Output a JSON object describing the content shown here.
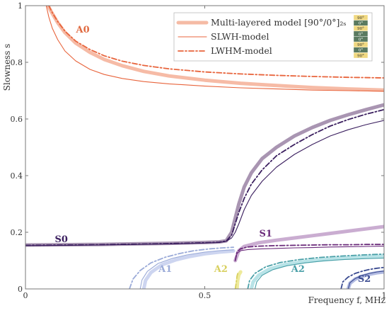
{
  "chart_data": {
    "type": "line",
    "title": "",
    "xlabel": "Frequency f, MHz",
    "ylabel": "Slowness s",
    "xlim": [
      0,
      1
    ],
    "ylim": [
      0,
      1
    ],
    "x_ticks": [
      "0",
      "0.5",
      "1"
    ],
    "y_ticks": [
      "0",
      "0.2",
      "0.4",
      "0.6",
      "0.8",
      "1"
    ],
    "grid": false,
    "legend_position": "top-right",
    "legend": [
      {
        "label": "Multi-layered model [90°/0°]₂ₛ",
        "style": "thick",
        "color": "#f5b49c"
      },
      {
        "label": "SLWH-model",
        "style": "thin",
        "color": "#e8643c"
      },
      {
        "label": "LWHM-model",
        "style": "dashdot",
        "color": "#e8643c"
      }
    ],
    "legend_layup": [
      "90°",
      "0°",
      "90°",
      "0°",
      "0°",
      "90°",
      "0°",
      "90°"
    ],
    "layup_colors": {
      "ninety": "#f0d880",
      "zero": "#5a7a60"
    },
    "mode_labels": [
      {
        "text": "A0",
        "x": 0.16,
        "y": 0.905,
        "color": "#e06a40"
      },
      {
        "text": "S0",
        "x": 0.1,
        "y": 0.165,
        "color": "#3b1f5f"
      },
      {
        "text": "S1",
        "x": 0.67,
        "y": 0.185,
        "color": "#6a2a7a"
      },
      {
        "text": "A1",
        "x": 0.39,
        "y": 0.06,
        "color": "#9aaad8"
      },
      {
        "text": "A2",
        "x": 0.545,
        "y": 0.06,
        "color": "#d8d060"
      },
      {
        "text": "A2",
        "x": 0.76,
        "y": 0.06,
        "color": "#4aa0a8"
      },
      {
        "text": "S2",
        "x": 0.945,
        "y": 0.025,
        "color": "#3a4a90"
      }
    ],
    "series": [
      {
        "mode": "A0",
        "model": "Multi-layered",
        "style": "thick",
        "color": "#f5b49c",
        "x": [
          0.063,
          0.075,
          0.09,
          0.11,
          0.14,
          0.18,
          0.22,
          0.27,
          0.33,
          0.4,
          0.5,
          0.6,
          0.7,
          0.8,
          0.9,
          1.0
        ],
        "y": [
          1.0,
          0.972,
          0.94,
          0.905,
          0.868,
          0.835,
          0.81,
          0.788,
          0.768,
          0.752,
          0.737,
          0.726,
          0.718,
          0.711,
          0.706,
          0.702
        ]
      },
      {
        "mode": "A0",
        "model": "SLWH",
        "style": "thin",
        "color": "#e8643c",
        "x": [
          0.058,
          0.065,
          0.075,
          0.09,
          0.11,
          0.14,
          0.18,
          0.22,
          0.27,
          0.33,
          0.4,
          0.5,
          0.6,
          0.7,
          0.8,
          0.9,
          1.0
        ],
        "y": [
          1.0,
          0.96,
          0.92,
          0.88,
          0.84,
          0.805,
          0.775,
          0.757,
          0.743,
          0.732,
          0.724,
          0.716,
          0.71,
          0.706,
          0.702,
          0.7,
          0.698
        ]
      },
      {
        "mode": "A0",
        "model": "LWHM",
        "style": "dashdot",
        "color": "#e8643c",
        "x": [
          0.065,
          0.075,
          0.09,
          0.11,
          0.14,
          0.18,
          0.22,
          0.27,
          0.33,
          0.4,
          0.5,
          0.6,
          0.7,
          0.8,
          0.9,
          1.0
        ],
        "y": [
          1.0,
          0.975,
          0.944,
          0.91,
          0.875,
          0.845,
          0.823,
          0.804,
          0.789,
          0.777,
          0.766,
          0.759,
          0.754,
          0.75,
          0.747,
          0.745
        ]
      },
      {
        "mode": "S0",
        "model": "Multi-layered",
        "style": "thick",
        "color": "#a08aaa",
        "x": [
          0.0,
          0.1,
          0.2,
          0.3,
          0.4,
          0.5,
          0.54,
          0.56,
          0.575,
          0.585,
          0.595,
          0.61,
          0.63,
          0.66,
          0.7,
          0.75,
          0.8,
          0.85,
          0.9,
          0.95,
          1.0
        ],
        "y": [
          0.155,
          0.156,
          0.157,
          0.159,
          0.161,
          0.164,
          0.166,
          0.17,
          0.2,
          0.25,
          0.3,
          0.36,
          0.41,
          0.46,
          0.5,
          0.54,
          0.57,
          0.595,
          0.615,
          0.633,
          0.65
        ]
      },
      {
        "mode": "S0",
        "model": "SLWH",
        "style": "thin",
        "color": "#3b1f5f",
        "x": [
          0.0,
          0.1,
          0.2,
          0.3,
          0.4,
          0.5,
          0.54,
          0.56,
          0.575,
          0.585,
          0.595,
          0.61,
          0.63,
          0.66,
          0.7,
          0.75,
          0.8,
          0.85,
          0.9,
          0.95,
          1.0
        ],
        "y": [
          0.153,
          0.154,
          0.155,
          0.157,
          0.159,
          0.162,
          0.164,
          0.168,
          0.18,
          0.2,
          0.23,
          0.28,
          0.33,
          0.38,
          0.43,
          0.475,
          0.51,
          0.54,
          0.562,
          0.58,
          0.595
        ]
      },
      {
        "mode": "S0",
        "model": "LWHM",
        "style": "dashdot",
        "color": "#3b1f5f",
        "x": [
          0.0,
          0.1,
          0.2,
          0.3,
          0.4,
          0.5,
          0.54,
          0.56,
          0.575,
          0.585,
          0.595,
          0.61,
          0.63,
          0.66,
          0.7,
          0.75,
          0.8,
          0.85,
          0.9,
          0.95,
          1.0
        ],
        "y": [
          0.154,
          0.155,
          0.156,
          0.158,
          0.16,
          0.163,
          0.165,
          0.169,
          0.19,
          0.23,
          0.27,
          0.32,
          0.37,
          0.42,
          0.47,
          0.51,
          0.545,
          0.575,
          0.598,
          0.617,
          0.633
        ]
      },
      {
        "mode": "S1",
        "model": "Multi-layered",
        "style": "thick",
        "color": "#c4a4cc",
        "x": [
          0.585,
          0.595,
          0.61,
          0.65,
          0.7,
          0.75,
          0.8,
          0.85,
          0.9,
          0.95,
          1.0
        ],
        "y": [
          0.1,
          0.135,
          0.15,
          0.163,
          0.172,
          0.18,
          0.188,
          0.196,
          0.204,
          0.212,
          0.22
        ]
      },
      {
        "mode": "S1",
        "model": "SLWH",
        "style": "thin",
        "color": "#6a2a7a",
        "x": [
          0.585,
          0.59,
          0.6,
          0.62,
          0.65,
          0.7,
          0.75,
          0.8,
          0.85,
          0.9,
          0.95,
          1.0
        ],
        "y": [
          0.1,
          0.125,
          0.135,
          0.139,
          0.141,
          0.143,
          0.145,
          0.146,
          0.148,
          0.149,
          0.15,
          0.151
        ]
      },
      {
        "mode": "S1",
        "model": "LWHM",
        "style": "dashdot",
        "color": "#6a2a7a",
        "x": [
          0.585,
          0.59,
          0.6,
          0.62,
          0.65,
          0.7,
          0.75,
          0.8,
          0.85,
          0.9,
          0.95,
          1.0
        ],
        "y": [
          0.1,
          0.13,
          0.142,
          0.148,
          0.151,
          0.153,
          0.154,
          0.155,
          0.156,
          0.156,
          0.157,
          0.157
        ]
      },
      {
        "mode": "A1",
        "model": "Multi-layered",
        "style": "thick",
        "color": "#c8d0ee",
        "x": [
          0.33,
          0.335,
          0.35,
          0.38,
          0.42,
          0.46,
          0.5,
          0.54,
          0.58
        ],
        "y": [
          0.0,
          0.03,
          0.058,
          0.085,
          0.103,
          0.115,
          0.124,
          0.13,
          0.134
        ]
      },
      {
        "mode": "A1",
        "model": "SLWH",
        "style": "thin",
        "color": "#9aaad8",
        "x": [
          0.32,
          0.325,
          0.34,
          0.37,
          0.41,
          0.45,
          0.5,
          0.54,
          0.58
        ],
        "y": [
          0.0,
          0.032,
          0.062,
          0.09,
          0.108,
          0.12,
          0.13,
          0.135,
          0.138
        ]
      },
      {
        "mode": "A1",
        "model": "LWHM",
        "style": "dashdot",
        "color": "#9aaad8",
        "x": [
          0.29,
          0.3,
          0.32,
          0.35,
          0.39,
          0.43,
          0.47,
          0.51,
          0.55,
          0.58
        ],
        "y": [
          0.0,
          0.035,
          0.065,
          0.092,
          0.112,
          0.125,
          0.135,
          0.141,
          0.145,
          0.147
        ]
      },
      {
        "mode": "A2",
        "model": "Multi-layered",
        "style": "thick",
        "color": "#ece890",
        "x": [
          0.59,
          0.592,
          0.595,
          0.6
        ],
        "y": [
          0.0,
          0.03,
          0.05,
          0.06
        ]
      },
      {
        "mode": "A2",
        "model": "LWHM",
        "style": "dashdot",
        "color": "#d8d060",
        "x": [
          0.585,
          0.588,
          0.59,
          0.593
        ],
        "y": [
          0.0,
          0.025,
          0.045,
          0.06
        ]
      },
      {
        "mode": "A2",
        "model": "Multi-layered",
        "style": "thick",
        "color": "#b0e0e4",
        "x": [
          0.63,
          0.635,
          0.65,
          0.68,
          0.72,
          0.77,
          0.82,
          0.88,
          0.94,
          1.0
        ],
        "y": [
          0.0,
          0.025,
          0.048,
          0.07,
          0.085,
          0.095,
          0.102,
          0.108,
          0.112,
          0.115
        ]
      },
      {
        "mode": "A2",
        "model": "SLWH",
        "style": "thin",
        "color": "#4aa0a8",
        "x": [
          0.64,
          0.645,
          0.66,
          0.69,
          0.73,
          0.78,
          0.83,
          0.89,
          0.95,
          1.0
        ],
        "y": [
          0.0,
          0.025,
          0.048,
          0.068,
          0.082,
          0.092,
          0.099,
          0.104,
          0.107,
          0.109
        ]
      },
      {
        "mode": "A2",
        "model": "LWHM",
        "style": "dashdot",
        "color": "#4aa0a8",
        "x": [
          0.62,
          0.625,
          0.64,
          0.67,
          0.71,
          0.76,
          0.82,
          0.88,
          0.94,
          1.0
        ],
        "y": [
          0.0,
          0.03,
          0.055,
          0.078,
          0.093,
          0.103,
          0.111,
          0.116,
          0.12,
          0.123
        ]
      },
      {
        "mode": "S2",
        "model": "Multi-layered",
        "style": "thick",
        "color": "#a8b2de",
        "x": [
          0.9,
          0.905,
          0.92,
          0.94,
          0.96,
          0.98,
          1.0
        ],
        "y": [
          0.0,
          0.02,
          0.035,
          0.045,
          0.052,
          0.057,
          0.06
        ]
      },
      {
        "mode": "S2",
        "model": "SLWH",
        "style": "thin",
        "color": "#3a4a90",
        "x": [
          0.9,
          0.905,
          0.92,
          0.94,
          0.96,
          0.98,
          1.0
        ],
        "y": [
          0.0,
          0.022,
          0.037,
          0.048,
          0.055,
          0.06,
          0.063
        ]
      },
      {
        "mode": "S2",
        "model": "LWHM",
        "style": "dashdot",
        "color": "#3a4a90",
        "x": [
          0.88,
          0.885,
          0.9,
          0.92,
          0.94,
          0.96,
          0.98,
          1.0
        ],
        "y": [
          0.0,
          0.025,
          0.042,
          0.055,
          0.063,
          0.069,
          0.073,
          0.076
        ]
      }
    ]
  }
}
